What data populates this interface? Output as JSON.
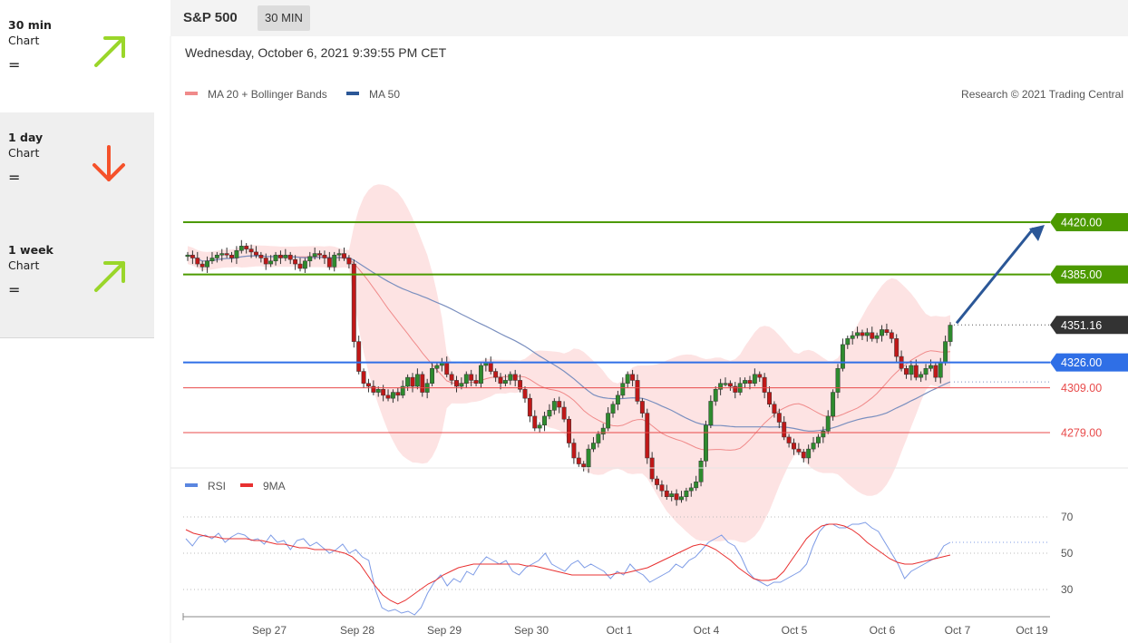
{
  "header": {
    "symbol": "S&P 500",
    "timeframe_badge": "30 MIN",
    "datetime": "Wednesday, October 6, 2021 9:39:55 PM CET"
  },
  "sidebar": {
    "items": [
      {
        "title": "30 min",
        "sub": "Chart",
        "eq": "=",
        "direction": "up",
        "color": "#9ad62a"
      },
      {
        "title": "1 day",
        "sub": "Chart",
        "eq": "=",
        "direction": "down",
        "color": "#f5512a"
      },
      {
        "title": "1 week",
        "sub": "Chart",
        "eq": "=",
        "direction": "up",
        "color": "#9ad62a"
      }
    ]
  },
  "chart_data": [
    {
      "type": "candlestick",
      "legend": [
        {
          "name": "MA 20 + Bollinger Bands",
          "color": "#f08a8a"
        },
        {
          "name": "MA 50",
          "color": "#2b5797"
        }
      ],
      "credit": "Research © 2021 Trading Central",
      "y_range": [
        4265,
        4440
      ],
      "x_labels": [
        "Sep 27",
        "Sep 28",
        "Sep 29",
        "Sep 30",
        "Oct 1",
        "Oct 4",
        "Oct 5",
        "Oct 6",
        "Oct 7",
        "Oct 19"
      ],
      "current_price": {
        "value": "4351.16",
        "color": "#333333"
      },
      "levels": [
        {
          "value": 4420,
          "label": "4420.00",
          "color": "#4c9a00",
          "style": "box"
        },
        {
          "value": 4385,
          "label": "4385.00",
          "color": "#4c9a00",
          "style": "box"
        },
        {
          "value": 4326,
          "label": "4326.00",
          "color": "#2f6fe6",
          "style": "box"
        },
        {
          "value": 4309,
          "label": "4309.00",
          "color": "#e84a4a",
          "style": "text"
        },
        {
          "value": 4279,
          "label": "4279.00",
          "color": "#e84a4a",
          "style": "text"
        }
      ],
      "closes": [
        4398,
        4396,
        4392,
        4390,
        4394,
        4396,
        4398,
        4399,
        4398,
        4396,
        4401,
        4404,
        4402,
        4400,
        4398,
        4396,
        4392,
        4394,
        4398,
        4396,
        4398,
        4395,
        4392,
        4389,
        4394,
        4397,
        4399,
        4398,
        4396,
        4390,
        4398,
        4399,
        4396,
        4392,
        4340,
        4320,
        4312,
        4310,
        4306,
        4308,
        4304,
        4302,
        4306,
        4304,
        4310,
        4316,
        4310,
        4318,
        4306,
        4312,
        4322,
        4324,
        4326,
        4318,
        4314,
        4310,
        4312,
        4318,
        4314,
        4312,
        4324,
        4326,
        4320,
        4316,
        4312,
        4314,
        4318,
        4314,
        4308,
        4302,
        4290,
        4282,
        4284,
        4290,
        4294,
        4300,
        4296,
        4288,
        4272,
        4262,
        4258,
        4256,
        4268,
        4272,
        4278,
        4282,
        4292,
        4298,
        4304,
        4312,
        4318,
        4314,
        4300,
        4292,
        4262,
        4248,
        4244,
        4240,
        4236,
        4238,
        4234,
        4236,
        4240,
        4242,
        4246,
        4260,
        4284,
        4300,
        4308,
        4312,
        4312,
        4310,
        4306,
        4312,
        4314,
        4312,
        4318,
        4316,
        4306,
        4298,
        4292,
        4286,
        4276,
        4272,
        4268,
        4266,
        4262,
        4268,
        4272,
        4276,
        4280,
        4290,
        4306,
        4322,
        4338,
        4342,
        4344,
        4346,
        4344,
        4346,
        4342,
        4344,
        4348,
        4346,
        4342,
        4330,
        4322,
        4318,
        4324,
        4316,
        4318,
        4322,
        4324,
        4316,
        4326,
        4340,
        4351
      ],
      "rsi": {
        "x_labels_used": true,
        "grid": [
          70,
          50,
          30
        ],
        "series": [
          {
            "name": "RSI",
            "color": "#5a86e0"
          },
          {
            "name": "9MA",
            "color": "#e83030"
          }
        ],
        "rsi_values": [
          58,
          54,
          59,
          60,
          58,
          61,
          56,
          59,
          61,
          60,
          57,
          58,
          55,
          60,
          56,
          57,
          52,
          57,
          58,
          54,
          56,
          53,
          50,
          52,
          55,
          50,
          52,
          48,
          46,
          30,
          20,
          18,
          19,
          17,
          18,
          16,
          20,
          28,
          34,
          38,
          32,
          36,
          34,
          40,
          38,
          44,
          48,
          46,
          44,
          46,
          40,
          38,
          42,
          44,
          46,
          50,
          44,
          42,
          40,
          44,
          46,
          42,
          44,
          42,
          40,
          36,
          40,
          38,
          44,
          40,
          38,
          34,
          36,
          38,
          40,
          44,
          42,
          46,
          48,
          52,
          56,
          58,
          60,
          56,
          54,
          48,
          40,
          36,
          34,
          32,
          34,
          34,
          36,
          38,
          40,
          44,
          54,
          62,
          66,
          66,
          64,
          64,
          66,
          66,
          67,
          64,
          62,
          56,
          50,
          44,
          36,
          40,
          42,
          44,
          46,
          48,
          54,
          56
        ],
        "ma_values": [
          63,
          61,
          60,
          59,
          59,
          58,
          58,
          58,
          58,
          57,
          57,
          56,
          55,
          55,
          54,
          53,
          53,
          52,
          52,
          52,
          51,
          50,
          48,
          44,
          38,
          32,
          27,
          24,
          22,
          24,
          27,
          30,
          33,
          35,
          38,
          40,
          42,
          43,
          44,
          44,
          44,
          44,
          44,
          44,
          44,
          43,
          43,
          42,
          41,
          40,
          39,
          38,
          38,
          38,
          38,
          38,
          38,
          39,
          39,
          40,
          41,
          42,
          44,
          46,
          48,
          50,
          52,
          54,
          55,
          54,
          52,
          49,
          46,
          42,
          39,
          36,
          35,
          35,
          36,
          40,
          46,
          52,
          58,
          62,
          65,
          66,
          66,
          65,
          63,
          60,
          56,
          53,
          50,
          47,
          45,
          44,
          44,
          45,
          46,
          47,
          48,
          49
        ]
      }
    }
  ]
}
